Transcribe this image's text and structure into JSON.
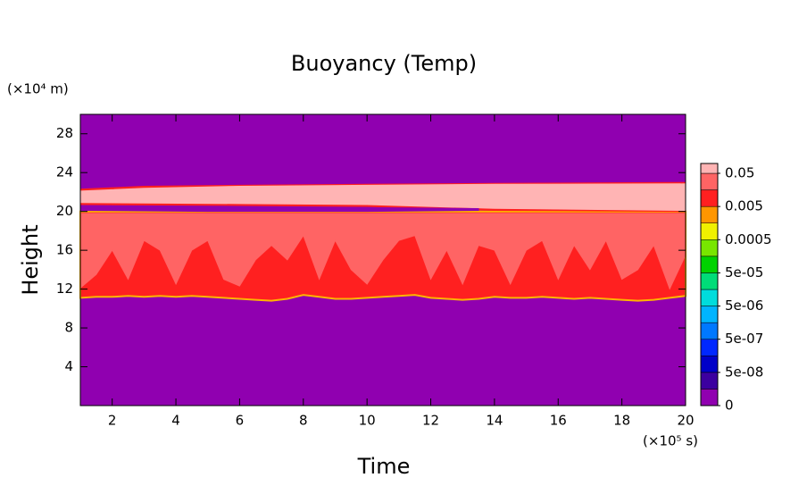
{
  "chart_data": {
    "type": "contour",
    "title": "Buoyancy (Temp)",
    "x_label": "Time",
    "y_label": "Height",
    "x_unit": "(×10⁵ s)",
    "y_unit": "(×10⁴ m)",
    "xlim": [
      1,
      20
    ],
    "ylim": [
      0,
      30
    ],
    "xticks": [
      2,
      4,
      6,
      8,
      10,
      12,
      14,
      16,
      18,
      20
    ],
    "yticks": [
      4,
      8,
      12,
      16,
      20,
      24,
      28
    ],
    "background_level": 0,
    "colorbar": {
      "levels": [
        0,
        1e-08,
        5e-08,
        1e-07,
        5e-07,
        1e-06,
        5e-06,
        1e-05,
        5e-05,
        0.0001,
        0.0005,
        0.001,
        0.005,
        0.01,
        0.05
      ],
      "colors": [
        "#9000b0",
        "#3c00a0",
        "#0000c8",
        "#0028ff",
        "#0078ff",
        "#00b4ff",
        "#00dcdc",
        "#00dc78",
        "#00d200",
        "#78e600",
        "#f0f000",
        "#ff9600",
        "#ff2020",
        "#ff6464",
        "#ffb4b4"
      ],
      "ticks": [
        0,
        {
          "value": 5e-08,
          "label": "5e-08"
        },
        {
          "value": 5e-07,
          "label": "5e-07"
        },
        {
          "value": 5e-06,
          "label": "5e-06"
        },
        {
          "value": 5e-05,
          "label": "5e-05"
        },
        0.0005,
        0.005,
        0.05
      ]
    },
    "regions": [
      {
        "level": 0.005,
        "x": [
          1,
          1.5,
          2,
          2.5,
          3,
          3.5,
          4,
          4.5,
          5,
          5.5,
          6,
          6.5,
          7,
          7.5,
          8,
          8.5,
          9,
          9.5,
          10,
          10.5,
          11,
          11.5,
          12,
          12.5,
          13,
          13.5,
          14,
          14.5,
          15,
          15.5,
          16,
          16.5,
          17,
          17.5,
          18,
          18.5,
          19,
          19.5,
          20,
          20,
          1
        ],
        "y": [
          11.1,
          11.2,
          11.2,
          11.3,
          11.2,
          11.3,
          11.2,
          11.3,
          11.2,
          11.1,
          11.0,
          10.9,
          10.8,
          11.0,
          11.4,
          11.2,
          11.0,
          11.0,
          11.1,
          11.2,
          11.3,
          11.4,
          11.1,
          11.0,
          10.9,
          11.0,
          11.2,
          11.1,
          11.1,
          11.2,
          11.1,
          11.0,
          11.1,
          11.0,
          10.9,
          10.8,
          10.9,
          11.1,
          11.3,
          20.0,
          20.0
        ]
      },
      {
        "level": 0.01,
        "x": [
          1,
          1.5,
          2,
          2.5,
          3,
          3.5,
          4,
          4.5,
          5,
          5.5,
          6,
          6.5,
          7,
          7.5,
          8,
          8.5,
          9,
          9.5,
          10,
          10.5,
          11,
          11.5,
          12,
          12.5,
          13,
          13.5,
          14,
          14.5,
          15,
          15.5,
          16,
          16.5,
          17,
          17.5,
          18,
          18.5,
          19,
          19.5,
          20,
          20,
          1
        ],
        "y": [
          12.1,
          13.5,
          16,
          13,
          17,
          16,
          12.5,
          16,
          17,
          13,
          12.3,
          15,
          16.5,
          15,
          17.5,
          13,
          17,
          14,
          12.5,
          15,
          17,
          17.5,
          13,
          16,
          12.5,
          16.5,
          16,
          12.5,
          16,
          17,
          13,
          16.5,
          14,
          17,
          13,
          14,
          16.5,
          12,
          15.5,
          19.8,
          19.8
        ]
      },
      {
        "level": 0.005,
        "x": [
          1,
          3,
          6,
          10,
          14,
          20,
          20,
          14,
          10,
          6,
          1
        ],
        "y": [
          22.3,
          22.6,
          22.7,
          22.8,
          22.9,
          23.0,
          20.0,
          20.1,
          20.5,
          20.6,
          20.7
        ]
      },
      {
        "level": 0.05,
        "x": [
          1,
          3,
          6,
          10,
          14,
          20,
          20,
          14,
          10,
          6,
          1
        ],
        "y": [
          22.1,
          22.4,
          22.6,
          22.7,
          22.8,
          22.85,
          20.1,
          20.3,
          20.7,
          20.8,
          20.9
        ]
      },
      {
        "level": 0,
        "x": [
          1,
          5,
          10,
          13.5,
          13.5,
          10,
          5,
          1
        ],
        "y": [
          20.6,
          20.5,
          20.4,
          20.3,
          20.1,
          20.0,
          20.0,
          20.1
        ]
      }
    ]
  }
}
